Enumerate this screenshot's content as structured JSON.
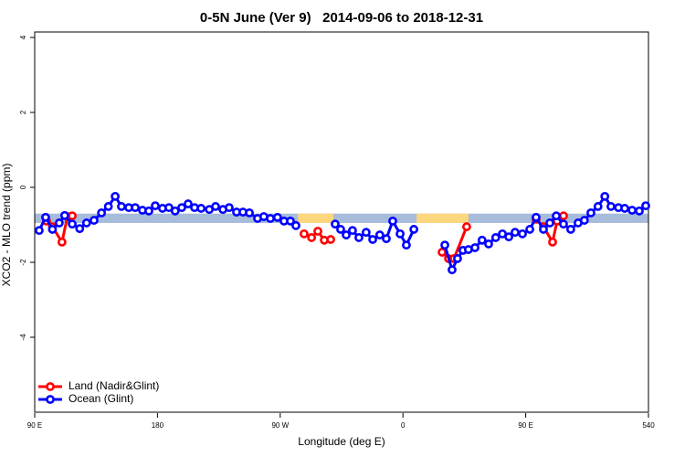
{
  "chart_data": {
    "type": "line",
    "title": "0-5N June (Ver 9)   2014-09-06 to 2018-12-31",
    "x_label": "Longitude (deg E)",
    "y_label": "XCO2 - MLO trend (ppm)",
    "xlim": [
      90,
      540
    ],
    "ylim": [
      -6,
      4
    ],
    "xticks": [
      {
        "value": 90,
        "label": "90 E"
      },
      180,
      {
        "value": 270,
        "label": "90 W"
      },
      {
        "value": 360,
        "label": "0"
      },
      {
        "value": 450,
        "label": "90 E"
      },
      540
    ],
    "yticks": [
      -4,
      -2,
      0,
      2,
      4
    ],
    "legend": "bottom-left",
    "reference_band": {
      "ymin": -0.95,
      "ymax": -0.7,
      "color": "#a7bcdb"
    },
    "land_spans": {
      "color": "#fcd77e",
      "spans": [
        [
          283,
          309
        ],
        [
          370,
          408
        ]
      ]
    },
    "series": [
      {
        "name": "Land (Nadir&Glint)",
        "color": "#ff0000",
        "x": [
          98.7,
          103,
          110,
          114,
          117.5,
          null,
          287.5,
          293,
          297.6,
          302.3,
          307,
          null,
          388.7,
          393.4,
          397.4,
          406.7,
          null,
          457.6,
          463,
          469.7,
          473,
          477.7
        ],
        "values": [
          -0.9,
          -1.05,
          -1.46,
          -0.78,
          -0.76,
          null,
          -1.24,
          -1.34,
          -1.17,
          -1.41,
          -1.39,
          null,
          -1.73,
          -1.9,
          -1.9,
          -1.05,
          null,
          -0.85,
          -1.05,
          -1.46,
          -0.9,
          -0.76
        ]
      },
      {
        "name": "Ocean (Glint)",
        "color": "#0000ff",
        "x": [
          93.3,
          98,
          103,
          108,
          112,
          117.5,
          123,
          128,
          133.5,
          139,
          144,
          149,
          153.6,
          159,
          163.7,
          169,
          173.7,
          178.4,
          183.7,
          188.4,
          193,
          197.8,
          202.5,
          207.2,
          212,
          218,
          222.6,
          228,
          232.6,
          238,
          242.7,
          247.4,
          253.4,
          258,
          262.8,
          268,
          272.8,
          277.5,
          281.5,
          null,
          310.3,
          314.3,
          318.4,
          323,
          327.7,
          333,
          337.8,
          343,
          347.8,
          352.5,
          357.9,
          362.5,
          368,
          null,
          390.7,
          396,
          400,
          404,
          408,
          412.8,
          418,
          422.8,
          428,
          432.9,
          437.6,
          442.2,
          447.6,
          453,
          457.6,
          463,
          467.7,
          472.4,
          477.7,
          483,
          488.4,
          493,
          497.8,
          503,
          508,
          512.5,
          518,
          522.6,
          528,
          533.3,
          538
        ],
        "values": [
          -1.15,
          -0.8,
          -1.12,
          -0.95,
          -0.75,
          -0.98,
          -1.1,
          -0.95,
          -0.88,
          -0.68,
          -0.51,
          -0.24,
          -0.51,
          -0.54,
          -0.54,
          -0.61,
          -0.63,
          -0.49,
          -0.56,
          -0.54,
          -0.63,
          -0.54,
          -0.44,
          -0.54,
          -0.56,
          -0.59,
          -0.51,
          -0.59,
          -0.54,
          -0.66,
          -0.66,
          -0.68,
          -0.83,
          -0.78,
          -0.83,
          -0.8,
          -0.9,
          -0.9,
          -1.02,
          null,
          -0.98,
          -1.12,
          -1.27,
          -1.15,
          -1.34,
          -1.2,
          -1.39,
          -1.27,
          -1.37,
          -0.9,
          -1.24,
          -1.54,
          -1.12,
          null,
          -1.54,
          -2.2,
          -1.9,
          -1.68,
          -1.66,
          -1.61,
          -1.41,
          -1.51,
          -1.34,
          -1.24,
          -1.32,
          -1.2,
          -1.24,
          -1.12,
          -0.8,
          -1.12,
          -0.95,
          -0.76,
          -0.98,
          -1.12,
          -0.95,
          -0.88,
          -0.68,
          -0.51,
          -0.24,
          -0.51,
          -0.54,
          -0.56,
          -0.61,
          -0.63,
          -0.49
        ]
      }
    ]
  }
}
